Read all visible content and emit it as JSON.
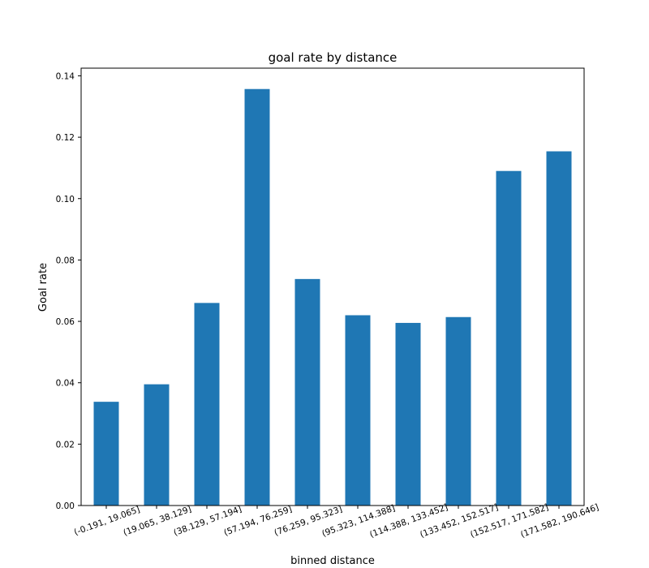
{
  "chart_data": {
    "type": "bar",
    "title": "goal rate by distance",
    "xlabel": "binned distance",
    "ylabel": "Goal rate",
    "categories": [
      "(-0.191, 19.065]",
      "(19.065, 38.129]",
      "(38.129, 57.194]",
      "(57.194, 76.259]",
      "(76.259, 95.323]",
      "(95.323, 114.388]",
      "(114.388, 133.452]",
      "(133.452, 152.517]",
      "(152.517, 171.582]",
      "(171.582, 190.646]"
    ],
    "values": [
      0.0338,
      0.0395,
      0.066,
      0.1357,
      0.0738,
      0.062,
      0.0595,
      0.0614,
      0.109,
      0.1154
    ],
    "ylim": [
      0,
      0.1425
    ],
    "yticks": [
      "0.00",
      "0.02",
      "0.04",
      "0.06",
      "0.08",
      "0.10",
      "0.12",
      "0.14"
    ],
    "grid": false,
    "legend": "none",
    "bar_color": "#1f77b4",
    "x_tick_rotation_deg": 20
  }
}
